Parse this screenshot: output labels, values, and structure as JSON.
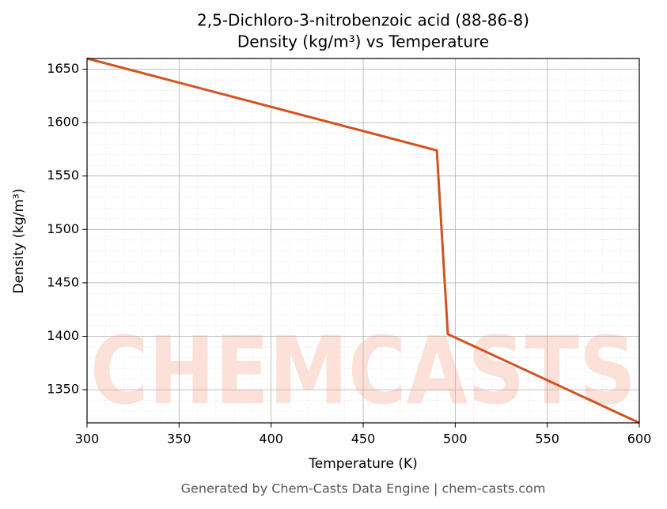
{
  "chart_data": {
    "type": "line",
    "title": "2,5-Dichloro-3-nitrobenzoic acid (88-86-8)",
    "subtitle": "Density (kg/m³) vs Temperature",
    "x_label": "Temperature (K)",
    "y_label": "Density (kg/m³)",
    "watermark": "CHEMCASTS",
    "footer": "Generated by Chem-Casts Data Engine | chem-casts.com",
    "x": [
      300,
      490,
      496,
      600
    ],
    "series": [
      {
        "name": "Density",
        "color": "#d4521f",
        "values": [
          1660,
          1574,
          1402,
          1319
        ]
      }
    ],
    "xlim": [
      300,
      600
    ],
    "xticks": [
      300,
      350,
      400,
      450,
      500,
      550,
      600
    ],
    "ylim": [
      1319,
      1660
    ],
    "yticks": [
      1350,
      1400,
      1450,
      1500,
      1550,
      1600,
      1650
    ],
    "grid": true,
    "minor_grid": true
  }
}
